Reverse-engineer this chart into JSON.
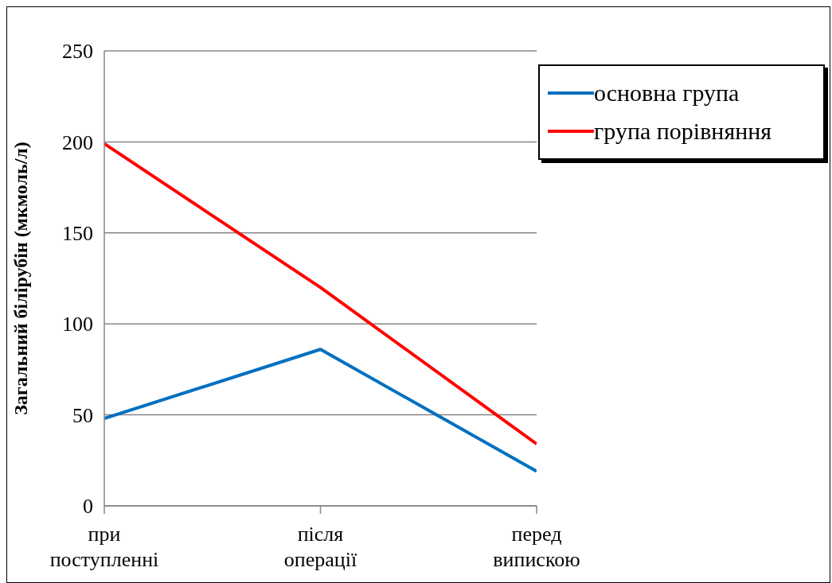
{
  "chart_data": {
    "type": "line",
    "ylabel": "Загальний білірубін (мкмоль/л)",
    "categories": [
      "при поступленні",
      "після операції",
      "перед випискою"
    ],
    "series": [
      {
        "name": "основна група",
        "color": "#0070c0",
        "values": [
          48,
          86,
          19
        ]
      },
      {
        "name": "група порівняння",
        "color": "#ff0000",
        "values": [
          199,
          120,
          34
        ]
      }
    ],
    "ylim": [
      0,
      250
    ],
    "yticks": [
      0,
      50,
      100,
      150,
      200,
      250
    ],
    "grid": "y",
    "legend": "top right"
  }
}
